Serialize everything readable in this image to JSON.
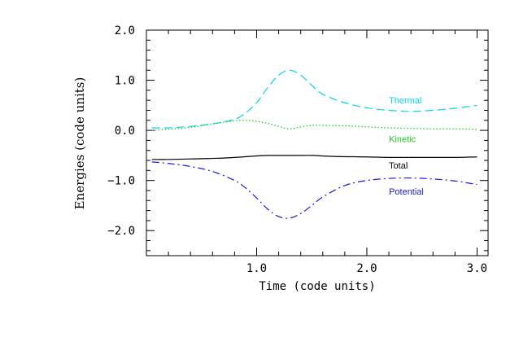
{
  "chart_data": {
    "type": "line",
    "title": "",
    "xlabel": "Time (code units)",
    "ylabel": "Energies (code units)",
    "xlim": [
      0.0,
      3.1
    ],
    "ylim": [
      -2.5,
      2.0
    ],
    "x_ticks": [
      1.0,
      2.0,
      3.0
    ],
    "x_tick_labels": [
      "1.0",
      "2.0",
      "3.0"
    ],
    "y_ticks": [
      2.0,
      1.0,
      0.0,
      -1.0,
      -2.0
    ],
    "y_tick_labels": [
      "2.0",
      "1.0",
      "0.0",
      "−1.0",
      "−2.0"
    ],
    "grid": false,
    "legend": "inline labels at right",
    "series": [
      {
        "name": "Thermal",
        "color": "#00d8e8",
        "dash": "dashed",
        "x": [
          0.05,
          0.2,
          0.4,
          0.6,
          0.8,
          0.9,
          1.0,
          1.1,
          1.2,
          1.3,
          1.4,
          1.5,
          1.6,
          1.8,
          2.0,
          2.2,
          2.4,
          2.6,
          2.8,
          3.0
        ],
        "y": [
          0.05,
          0.05,
          0.08,
          0.13,
          0.22,
          0.35,
          0.55,
          0.85,
          1.1,
          1.2,
          1.1,
          0.9,
          0.72,
          0.55,
          0.45,
          0.4,
          0.38,
          0.4,
          0.44,
          0.5
        ]
      },
      {
        "name": "Kinetic",
        "color": "#22c822",
        "dash": "dotted",
        "x": [
          0.05,
          0.2,
          0.4,
          0.6,
          0.8,
          0.9,
          1.0,
          1.1,
          1.2,
          1.3,
          1.4,
          1.5,
          1.6,
          1.8,
          2.0,
          2.2,
          2.4,
          2.6,
          2.8,
          3.0
        ],
        "y": [
          0.0,
          0.02,
          0.06,
          0.13,
          0.19,
          0.2,
          0.18,
          0.14,
          0.08,
          0.03,
          0.07,
          0.1,
          0.1,
          0.09,
          0.07,
          0.05,
          0.04,
          0.03,
          0.03,
          0.02
        ]
      },
      {
        "name": "Total",
        "color": "#000000",
        "dash": "solid",
        "x": [
          0.05,
          0.2,
          0.4,
          0.6,
          0.8,
          1.0,
          1.1,
          1.2,
          1.3,
          1.4,
          1.5,
          1.7,
          2.0,
          2.2,
          2.5,
          2.8,
          3.0
        ],
        "y": [
          -0.58,
          -0.58,
          -0.57,
          -0.56,
          -0.54,
          -0.51,
          -0.5,
          -0.5,
          -0.5,
          -0.5,
          -0.5,
          -0.52,
          -0.53,
          -0.54,
          -0.54,
          -0.54,
          -0.53
        ]
      },
      {
        "name": "Potential",
        "color": "#1a1ae0",
        "dash": "dashdot",
        "x": [
          0.05,
          0.2,
          0.4,
          0.6,
          0.8,
          0.9,
          1.0,
          1.1,
          1.2,
          1.3,
          1.4,
          1.5,
          1.6,
          1.8,
          2.0,
          2.2,
          2.4,
          2.6,
          2.8,
          3.0
        ],
        "y": [
          -0.63,
          -0.66,
          -0.72,
          -0.82,
          -1.0,
          -1.15,
          -1.35,
          -1.57,
          -1.72,
          -1.75,
          -1.66,
          -1.5,
          -1.33,
          -1.1,
          -1.0,
          -0.96,
          -0.95,
          -0.97,
          -1.01,
          -1.08
        ]
      }
    ],
    "series_label_positions": [
      {
        "name": "Thermal",
        "x": 2.2,
        "y": 0.6
      },
      {
        "name": "Kinetic",
        "x": 2.2,
        "y": -0.17
      },
      {
        "name": "Total",
        "x": 2.2,
        "y": -0.7
      },
      {
        "name": "Potential",
        "x": 2.2,
        "y": -1.22
      }
    ]
  }
}
